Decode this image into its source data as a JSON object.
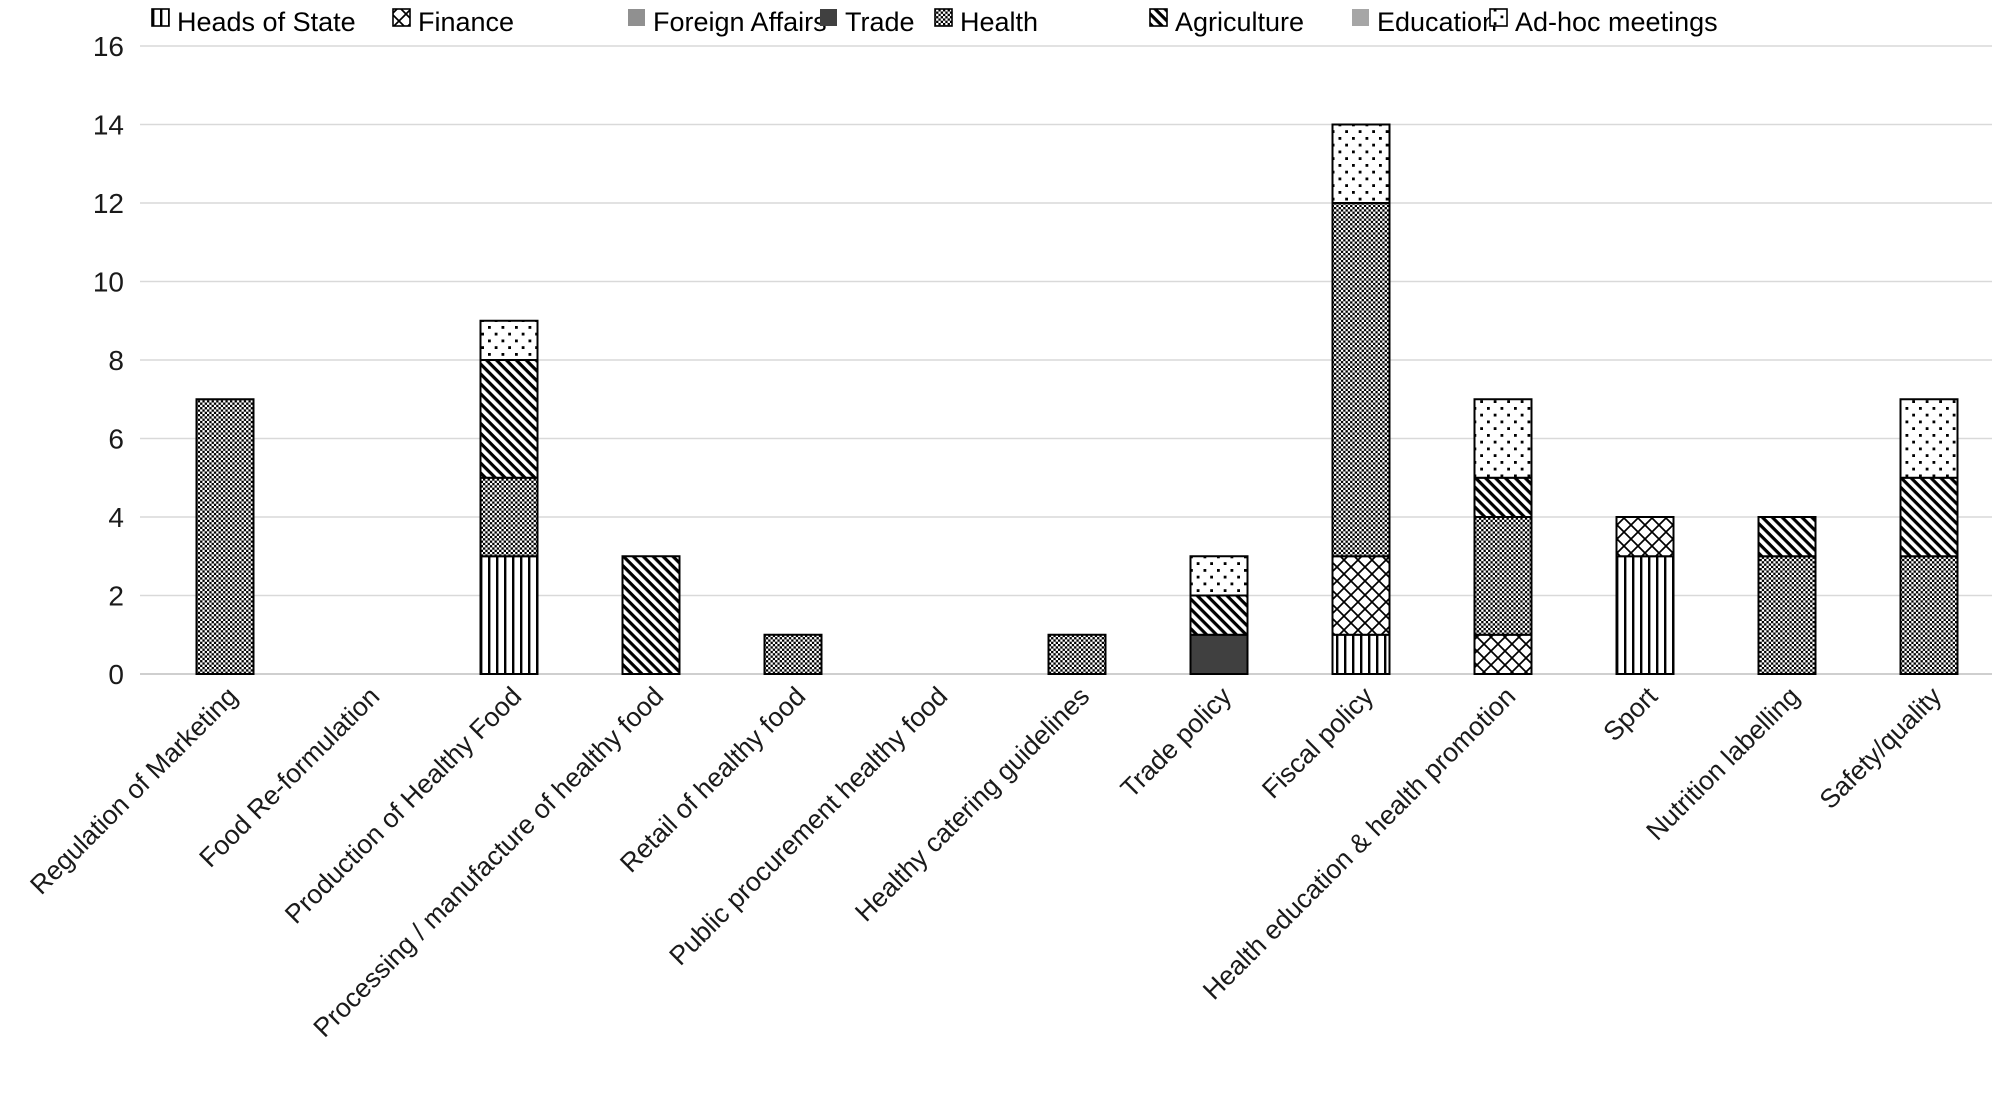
{
  "figure": {
    "background": "#ffffff"
  },
  "chart_data": {
    "type": "bar",
    "stacked": true,
    "title": "",
    "xlabel": "",
    "ylabel": "",
    "ylim": [
      0,
      16
    ],
    "yticks": [
      0,
      2,
      4,
      6,
      8,
      10,
      12,
      14,
      16
    ],
    "grid": true,
    "legend_position": "top",
    "categories": [
      "Regulation of Marketing",
      "Food Re-formulation",
      "Production of Healthy Food",
      "Processing / manufacture of healthy food",
      "Retail of healthy food",
      "Public procurement healthy food",
      "Healthy catering guidelines",
      "Trade policy",
      "Fiscal policy",
      "Health education & health promotion",
      "Sport",
      "Nutrition labelling",
      "Safety/quality"
    ],
    "series": [
      {
        "name": "Heads of State",
        "pattern": "vertical-lines",
        "values": [
          0,
          0,
          3,
          0,
          0,
          0,
          0,
          0,
          1,
          0,
          3,
          0,
          0
        ]
      },
      {
        "name": "Finance",
        "pattern": "diagonal-crosshatch",
        "values": [
          0,
          0,
          0,
          0,
          0,
          0,
          0,
          0,
          2,
          1,
          1,
          0,
          0
        ]
      },
      {
        "name": "Foreign Affairs",
        "pattern": "solid",
        "color": "#909090",
        "values": [
          0,
          0,
          0,
          0,
          0,
          0,
          0,
          0,
          0,
          0,
          0,
          0,
          0
        ]
      },
      {
        "name": "Trade",
        "pattern": "solid",
        "color": "#404040",
        "values": [
          0,
          0,
          0,
          0,
          0,
          0,
          0,
          1,
          0,
          0,
          0,
          0,
          0
        ]
      },
      {
        "name": "Health",
        "pattern": "dense-checker",
        "values": [
          7,
          0,
          2,
          0,
          1,
          0,
          1,
          0,
          9,
          3,
          0,
          3,
          3
        ]
      },
      {
        "name": "Agriculture",
        "pattern": "diagonal-stripes",
        "values": [
          0,
          0,
          3,
          3,
          0,
          0,
          0,
          1,
          0,
          1,
          0,
          1,
          2
        ]
      },
      {
        "name": "Education",
        "pattern": "solid",
        "color": "#a6a6a6",
        "values": [
          0,
          0,
          0,
          0,
          0,
          0,
          0,
          0,
          0,
          0,
          0,
          0,
          0
        ]
      },
      {
        "name": "Ad-hoc meetings",
        "pattern": "sparse-dots",
        "values": [
          0,
          0,
          1,
          0,
          0,
          0,
          0,
          1,
          2,
          2,
          0,
          0,
          2
        ]
      }
    ],
    "colors": {
      "pattern_fg": "#000000",
      "bar_outline": "#000000",
      "gridline": "#d9d9d9",
      "axis_line": "#bfbfbf",
      "text": "#1a1a1a"
    }
  }
}
